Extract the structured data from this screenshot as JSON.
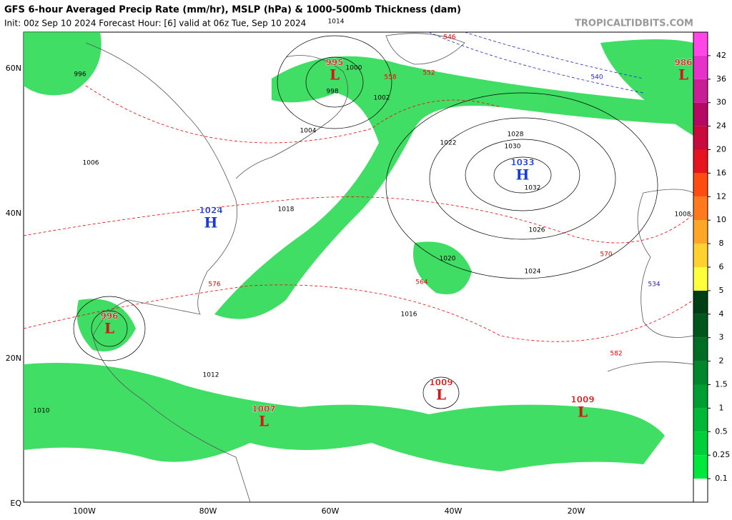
{
  "header": {
    "title": "GFS 6-hour Averaged Precip Rate (mm/hr), MSLP (hPa) & 1000-500mb Thickness (dam)",
    "init": "Init: 00z Sep 10 2024   Forecast Hour: [6]   valid at 06z Tue, Sep 10 2024",
    "site": "TROPICALTIDBITS.COM"
  },
  "axis": {
    "lat": [
      "60N",
      "40N",
      "20N",
      "EQ"
    ],
    "lon": [
      "100W",
      "80W",
      "60W",
      "40W",
      "20W"
    ]
  },
  "colorbar": {
    "ticks": [
      0.1,
      0.25,
      0.5,
      1,
      1.5,
      2,
      3,
      4,
      5,
      6,
      8,
      10,
      12,
      16,
      20,
      24,
      30,
      36,
      42
    ],
    "colors": [
      "#ffffff",
      "#00e83c",
      "#00cf3a",
      "#00b736",
      "#009e31",
      "#00862b",
      "#006d24",
      "#00561d",
      "#003f15",
      "#ffff3c",
      "#ffd230",
      "#ffa626",
      "#ff7a1c",
      "#ff4d12",
      "#e6141e",
      "#c80a3c",
      "#b40a64",
      "#c81e96",
      "#e632c8",
      "#ff46e6"
    ]
  },
  "centers": [
    {
      "kind": "L",
      "pressure": "995"
    },
    {
      "kind": "H",
      "pressure": "1033"
    },
    {
      "kind": "H",
      "pressure": "1024"
    },
    {
      "kind": "L",
      "pressure": "996"
    },
    {
      "kind": "L",
      "pressure": "1007"
    },
    {
      "kind": "L",
      "pressure": "1009"
    },
    {
      "kind": "L",
      "pressure": "1009"
    },
    {
      "kind": "L",
      "pressure": "986"
    }
  ],
  "contour_labels": [
    "1010",
    "1012",
    "1014",
    "1016",
    "1018",
    "1020",
    "1022",
    "1024",
    "1026",
    "1028",
    "1030",
    "1032",
    "1002",
    "1004",
    "1006",
    "1008",
    "1000",
    "998",
    "996",
    "576",
    "570",
    "564",
    "558",
    "552",
    "546",
    "540",
    "534",
    "582"
  ]
}
